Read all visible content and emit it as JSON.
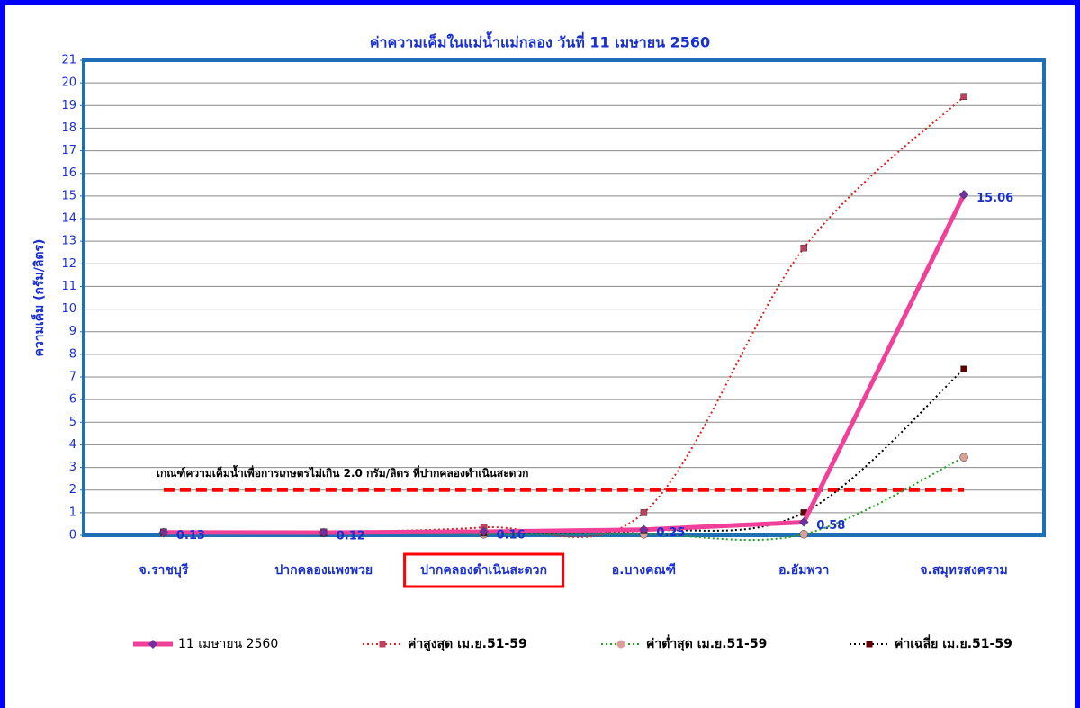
{
  "chart_data": {
    "type": "line",
    "title": "ค่าความเค็มในแม่น้ำแม่กลอง วันที่ 11 เมษายน 2560",
    "ylabel": "ความเค็ม (กรัม/ลิตร)",
    "categories": [
      "จ.ราชบุรี",
      "ปากคลองแพงพวย",
      "ปากคลองดำเนินสะดวก",
      "อ.บางคณฑี",
      "อ.อัมพวา",
      "จ.สมุทรสงคราม"
    ],
    "highlight_category": 2,
    "ylim": [
      0,
      21
    ],
    "yticks": [
      0,
      1,
      2,
      3,
      4,
      5,
      6,
      7,
      8,
      9,
      10,
      11,
      12,
      13,
      14,
      15,
      16,
      17,
      18,
      19,
      20,
      21
    ],
    "grid": true,
    "legend": "bottom",
    "reference_line": {
      "value": 2,
      "color": "#ff0000",
      "label": "เกณฑ์ความเค็มน้ำเพื่อการเกษตรไม่เกิน 2.0 กรัม/ลิตร ที่ปากคลองดำเนินสะดวก"
    },
    "series": [
      {
        "name": "11 เมษายน 2560",
        "color": "#f0409a",
        "marker_color": "#7030a0",
        "marker": "diamond",
        "dash": "solid",
        "width": 5,
        "smooth": false,
        "data_labels": true,
        "values": [
          0.13,
          0.12,
          0.16,
          0.25,
          0.58,
          15.06
        ]
      },
      {
        "name": "ค่าสูงสุด เม.ย.51-59",
        "color": "#e02020",
        "marker_color": "#c04060",
        "marker": "square",
        "dash": "dot",
        "width": 2,
        "smooth": true,
        "data_labels": false,
        "values": [
          0.15,
          0.15,
          0.35,
          1.0,
          12.7,
          19.4
        ]
      },
      {
        "name": "ค่าต่ำสุด เม.ย.51-59",
        "color": "#20a020",
        "marker_color": "#d9a09a",
        "marker": "circle",
        "dash": "dot",
        "width": 2,
        "smooth": true,
        "data_labels": false,
        "values": [
          0.1,
          0.1,
          0.05,
          0.05,
          0.05,
          3.45
        ]
      },
      {
        "name": "ค่าเฉลี่ย เม.ย.51-59",
        "color": "#000000",
        "marker_color": "#600000",
        "marker": "square",
        "dash": "dot",
        "width": 2,
        "smooth": true,
        "data_labels": false,
        "values": [
          0.12,
          0.1,
          0.1,
          0.2,
          1.0,
          7.35
        ]
      }
    ]
  }
}
